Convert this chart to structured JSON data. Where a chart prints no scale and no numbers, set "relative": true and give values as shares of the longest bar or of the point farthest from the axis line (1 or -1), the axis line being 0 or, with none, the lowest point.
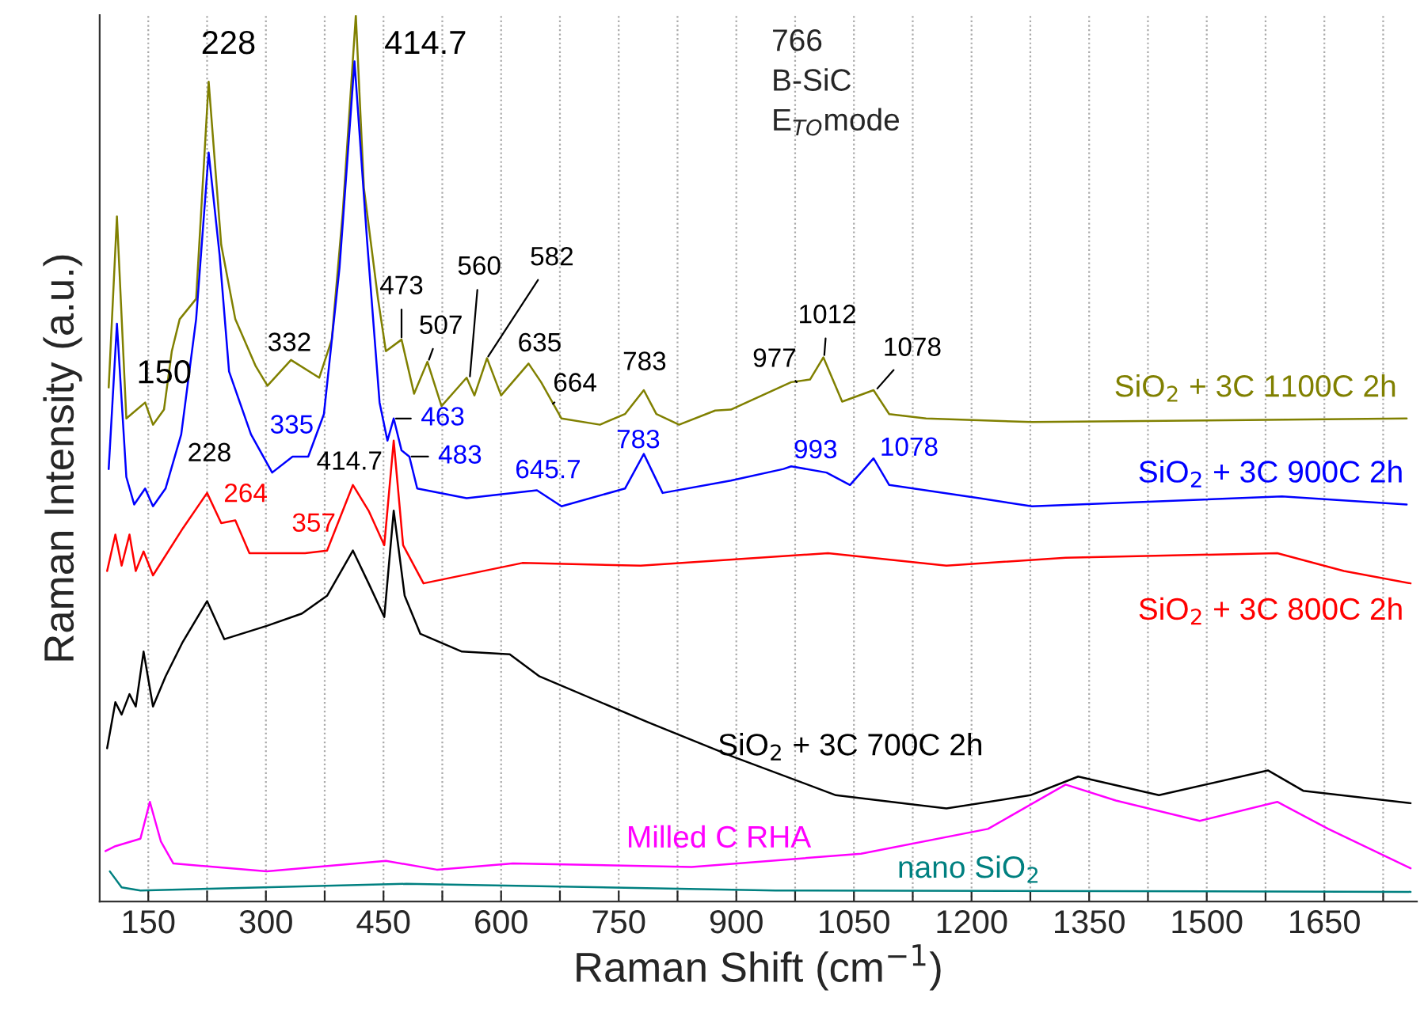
{
  "chart_data": {
    "type": "line",
    "relative": true,
    "xlabel": "Raman Shift (cm$^{−1}$)",
    "ylabel": "Raman Intensity (a.u.)",
    "xlim": [
      88,
      1768
    ],
    "xticks": [
      150,
      {
        "value": 225,
        "label": null
      },
      300,
      {
        "value": 375,
        "label": null
      },
      450,
      {
        "value": 525,
        "label": null
      },
      600,
      {
        "value": 675,
        "label": null
      },
      750,
      {
        "value": 825,
        "label": null
      },
      900,
      {
        "value": 975,
        "label": null
      },
      1050,
      {
        "value": 1125,
        "label": null
      },
      1200,
      {
        "value": 1275,
        "label": null
      },
      1350,
      {
        "value": 1425,
        "label": null
      },
      1500,
      {
        "value": 1575,
        "label": null
      },
      1650,
      {
        "value": 1725,
        "label": null
      }
    ],
    "grid": "x",
    "tick_labels": "x",
    "line_style": "solid",
    "series": [
      {
        "name": "SiO$_{2}$ + 3C 1100C 2h",
        "color": "#808000",
        "x": [
          99.5,
          110,
          122,
          146,
          156,
          170,
          180,
          190,
          211,
          227,
          243,
          261,
          287,
          302,
          332,
          368,
          384,
          398,
          414.7,
          425,
          443,
          453,
          473,
          489,
          506,
          524,
          556,
          566,
          582,
          600,
          635,
          651,
          677,
          726,
          758,
          782,
          798,
          827,
          873,
          893,
          960,
          970,
          994,
          1011,
          1035,
          1075,
          1095,
          1142,
          1277,
          1755
        ],
        "values": [
          0.58,
          0.773,
          0.545,
          0.563,
          0.538,
          0.555,
          0.621,
          0.657,
          0.68,
          0.925,
          0.741,
          0.657,
          0.604,
          0.582,
          0.611,
          0.591,
          0.634,
          0.777,
          1.0,
          0.805,
          0.68,
          0.621,
          0.634,
          0.573,
          0.609,
          0.559,
          0.591,
          0.571,
          0.613,
          0.571,
          0.607,
          0.586,
          0.545,
          0.538,
          0.55,
          0.577,
          0.55,
          0.538,
          0.554,
          0.555,
          0.582,
          0.586,
          0.589,
          0.614,
          0.564,
          0.577,
          0.55,
          0.545,
          0.541,
          0.545
        ]
      },
      {
        "name": "SiO$_{2}$ + 3C 900C 2h",
        "color": "#0000ff",
        "x": [
          99.5,
          110,
          122,
          132,
          146,
          156,
          172,
          192,
          211,
          227,
          241,
          253,
          281,
          308,
          334,
          354,
          374,
          394,
          413,
          429,
          445,
          455,
          463,
          473,
          483,
          493,
          556,
          645.7,
          677,
          758,
          782,
          806,
          893,
          960,
          970,
          1015,
          1045,
          1075,
          1095,
          1210,
          1277,
          1596,
          1755
        ],
        "values": [
          0.488,
          0.652,
          0.479,
          0.448,
          0.466,
          0.446,
          0.466,
          0.527,
          0.657,
          0.845,
          0.729,
          0.598,
          0.527,
          0.484,
          0.502,
          0.502,
          0.55,
          0.716,
          0.948,
          0.746,
          0.563,
          0.52,
          0.545,
          0.509,
          0.502,
          0.466,
          0.455,
          0.464,
          0.446,
          0.466,
          0.505,
          0.461,
          0.475,
          0.488,
          0.491,
          0.484,
          0.47,
          0.5,
          0.47,
          0.455,
          0.446,
          0.457,
          0.448
        ]
      },
      {
        "name": "SiO$_{2}$ + 3C 800C 2h",
        "color": "#ff0000",
        "x": [
          97.5,
          108,
          116,
          126,
          134,
          144,
          156,
          194,
          225,
          243,
          261,
          279,
          350,
          378,
          411,
          431,
          451,
          463,
          475,
          501,
          627,
          778,
          1017,
          1168,
          1320,
          1590,
          1675,
          1760
        ],
        "values": [
          0.373,
          0.414,
          0.379,
          0.414,
          0.373,
          0.395,
          0.368,
          0.421,
          0.461,
          0.427,
          0.43,
          0.393,
          0.393,
          0.396,
          0.47,
          0.441,
          0.402,
          0.52,
          0.402,
          0.359,
          0.382,
          0.379,
          0.393,
          0.379,
          0.388,
          0.393,
          0.373,
          0.359
        ]
      },
      {
        "name": "SiO$_{2}$ + 3C 700C 2h",
        "color": "#000000",
        "x": [
          97.5,
          108,
          116,
          126,
          134,
          144,
          156,
          172,
          194,
          225,
          247,
          301,
          346,
          378,
          411,
          431,
          451,
          463,
          477,
          497,
          550,
          611,
          649,
          788,
          897,
          1027,
          1168,
          1275,
          1336,
          1439,
          1578,
          1623,
          1760
        ],
        "values": [
          0.173,
          0.225,
          0.211,
          0.234,
          0.22,
          0.282,
          0.22,
          0.254,
          0.293,
          0.339,
          0.296,
          0.311,
          0.325,
          0.345,
          0.396,
          0.359,
          0.321,
          0.441,
          0.345,
          0.302,
          0.282,
          0.279,
          0.254,
          0.202,
          0.163,
          0.12,
          0.105,
          0.12,
          0.141,
          0.12,
          0.148,
          0.125,
          0.111
        ]
      },
      {
        "name": "Milled C RHA",
        "color": "#ff00ff",
        "x": [
          95.4,
          108,
          140,
          152,
          166,
          182,
          301,
          453,
          518,
          615,
          843,
          1059,
          1221,
          1320,
          1384,
          1491,
          1590,
          1655,
          1760
        ],
        "values": [
          0.057,
          0.0625,
          0.071,
          0.1125,
          0.068,
          0.043,
          0.034,
          0.046,
          0.036,
          0.043,
          0.039,
          0.054,
          0.082,
          0.132,
          0.114,
          0.091,
          0.1125,
          0.082,
          0.0375
        ]
      },
      {
        "name": "nano SiO$_{2}$",
        "color": "#008080",
        "x": [
          101,
          116,
          140,
          479,
          950,
          1760
        ],
        "values": [
          0.034,
          0.016,
          0.0125,
          0.02,
          0.0125,
          0.011
        ]
      }
    ],
    "annotations": [
      {
        "text": "150",
        "x": 150,
        "y": 0.548
      },
      {
        "text": "228",
        "x": 228,
        "y": 0.925
      },
      {
        "text": "414.7",
        "x": 414.7,
        "y": 1.0
      },
      {
        "text": "332",
        "x": 332,
        "y": 0.611
      },
      {
        "text": "473",
        "x": 473,
        "y": 0.634
      },
      {
        "text": "507",
        "x": 507,
        "y": 0.609
      },
      {
        "text": "560",
        "x": 560,
        "y": 0.59
      },
      {
        "text": "582",
        "x": 582,
        "y": 0.613
      },
      {
        "text": "635",
        "x": 635,
        "y": 0.607
      },
      {
        "text": "664",
        "x": 664,
        "y": 0.56
      },
      {
        "text": "783",
        "x": 783,
        "y": 0.577
      },
      {
        "text": "977",
        "x": 977,
        "y": 0.586
      },
      {
        "text": "1012",
        "x": 1012,
        "y": 0.614
      },
      {
        "text": "1078",
        "x": 1078,
        "y": 0.577
      },
      {
        "text": "335",
        "x": 335,
        "y": 0.502
      },
      {
        "text": "463",
        "x": 463,
        "y": 0.545
      },
      {
        "text": "483",
        "x": 483,
        "y": 0.502
      },
      {
        "text": "645.7",
        "x": 645.7,
        "y": 0.464
      },
      {
        "text": "783",
        "x": 783,
        "y": 0.505
      },
      {
        "text": "993",
        "x": 993,
        "y": 0.49
      },
      {
        "text": "1078",
        "x": 1078,
        "y": 0.5
      },
      {
        "text": "228",
        "x": 228,
        "y": 0.458
      },
      {
        "text": "414.7",
        "x": 414.7,
        "y": 0.47
      },
      {
        "text": "264",
        "x": 264,
        "y": 0.43
      },
      {
        "text": "357",
        "x": 357,
        "y": 0.393
      },
      "766\nB-SiC\nE$_{TO}$mode"
    ]
  }
}
